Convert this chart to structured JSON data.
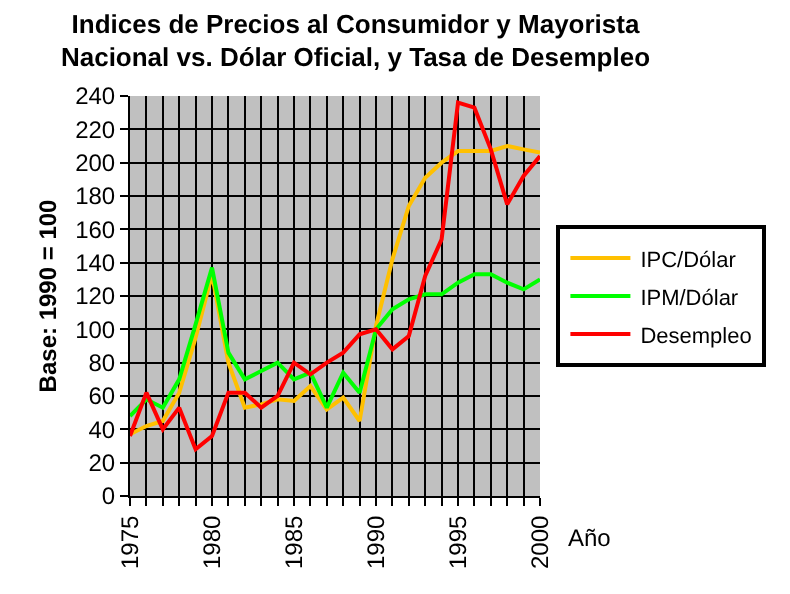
{
  "chart_data": {
    "type": "line",
    "title": "Indices de Precios al Consumidor y Mayorista\nNacional vs. Dólar Oficial, y Tasa de Desempleo",
    "xlabel": "Año",
    "ylabel": "Base: 1990 = 100",
    "x": [
      1975,
      1976,
      1977,
      1978,
      1979,
      1980,
      1981,
      1982,
      1983,
      1984,
      1985,
      1986,
      1987,
      1988,
      1989,
      1990,
      1991,
      1992,
      1993,
      1994,
      1995,
      1996,
      1997,
      1998,
      1999,
      2000
    ],
    "series": [
      {
        "name": "IPC/Dólar",
        "color": "#ffc000",
        "values": [
          37,
          42,
          45,
          62,
          95,
          133,
          80,
          53,
          55,
          58,
          57,
          66,
          52,
          59,
          45,
          102,
          142,
          174,
          191,
          200,
          207,
          207,
          207,
          210,
          208,
          206
        ]
      },
      {
        "name": "IPM/Dólar",
        "color": "#00ff00",
        "values": [
          48,
          58,
          53,
          70,
          103,
          137,
          86,
          70,
          75,
          80,
          70,
          74,
          53,
          74,
          62,
          100,
          112,
          118,
          121,
          121,
          128,
          133,
          133,
          128,
          124,
          130
        ]
      },
      {
        "name": "Desempleo",
        "color": "#ff0000",
        "values": [
          36,
          62,
          40,
          53,
          28,
          36,
          62,
          62,
          53,
          60,
          80,
          73,
          80,
          86,
          97,
          100,
          88,
          96,
          132,
          154,
          236,
          233,
          208,
          175,
          192,
          204
        ]
      }
    ],
    "xlim": [
      1975,
      2000
    ],
    "xticks": [
      1975,
      {
        "value": 1976,
        "label": null
      },
      {
        "value": 1977,
        "label": null
      },
      {
        "value": 1978,
        "label": null
      },
      {
        "value": 1979,
        "label": null
      },
      1980,
      {
        "value": 1981,
        "label": null
      },
      {
        "value": 1982,
        "label": null
      },
      {
        "value": 1983,
        "label": null
      },
      {
        "value": 1984,
        "label": null
      },
      1985,
      {
        "value": 1986,
        "label": null
      },
      {
        "value": 1987,
        "label": null
      },
      {
        "value": 1988,
        "label": null
      },
      {
        "value": 1989,
        "label": null
      },
      1990,
      {
        "value": 1991,
        "label": null
      },
      {
        "value": 1992,
        "label": null
      },
      {
        "value": 1993,
        "label": null
      },
      {
        "value": 1994,
        "label": null
      },
      1995,
      {
        "value": 1996,
        "label": null
      },
      {
        "value": 1997,
        "label": null
      },
      {
        "value": 1998,
        "label": null
      },
      {
        "value": 1999,
        "label": null
      },
      2000
    ],
    "ylim": [
      0,
      240
    ],
    "yticks": [
      0,
      20,
      40,
      60,
      80,
      100,
      120,
      140,
      160,
      180,
      200,
      220,
      240
    ],
    "grid": true,
    "legend": "right",
    "marker": "none",
    "line_style": "solid"
  }
}
